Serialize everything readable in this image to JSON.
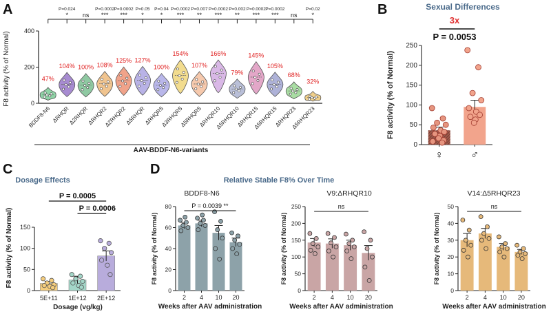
{
  "panel_labels": {
    "a": "A",
    "b": "B",
    "c": "C",
    "d": "D"
  },
  "chart_data": [
    {
      "id": "A",
      "type": "violin",
      "ylabel": "F8 activity (% of Normal)",
      "ylim": [
        0,
        400
      ],
      "yticks": [
        0,
        200,
        400
      ],
      "xlabel": "AAV-BDDF-N6-variants",
      "categories": [
        "BDDF8-N6",
        "ΔRHQR",
        "Δ2RHQR",
        "ΔRHQR2",
        "Δ2RHQR2",
        "Δ5RHQR",
        "ΔRHQR5",
        "Δ3RHQR5",
        "Δ5RHQR5",
        "ΔRHQR10",
        "Δ5RHQR10",
        "ΔRHQR15",
        "Δ5RHQR15",
        "ΔRHQR23",
        "Δ5RHQR23"
      ],
      "means_label": [
        "47%",
        "104%",
        "100%",
        "108%",
        "125%",
        "127%",
        "100%",
        "154%",
        "107%",
        "166%",
        "79%",
        "145%",
        "105%",
        "68%",
        "32%"
      ],
      "means": [
        47,
        104,
        100,
        108,
        125,
        127,
        100,
        154,
        107,
        166,
        79,
        145,
        105,
        68,
        32
      ],
      "colors": [
        "#8fd3a6",
        "#a78bd1",
        "#8fc9a2",
        "#f0c48f",
        "#f0a38a",
        "#b8b2e6",
        "#b9b7ea",
        "#f2dc8f",
        "#f6c9ad",
        "#d9b8e6",
        "#b9bfd8",
        "#e3a7c8",
        "#aeb2d8",
        "#a9dda3",
        "#f0cf8a"
      ],
      "pvalues": [
        "",
        "P=0.024",
        "",
        "P=0.0002",
        "P=0.0002",
        "P=0.05",
        "P=0.04",
        "P=0.0002",
        "P=0.007",
        "P=0.0002",
        "P=0.002",
        "P=0.0002",
        "P=0.0002",
        "",
        "P=0.02"
      ],
      "stars": [
        "",
        "*",
        "ns",
        "***",
        "***",
        "*",
        "*",
        "***",
        "**",
        "***",
        "**",
        "***",
        "***",
        "ns",
        "*"
      ]
    },
    {
      "id": "B",
      "type": "bar",
      "title": "Sexual Differences",
      "ylabel": "F8 activity (% of Normal)",
      "ylim": [
        0,
        250
      ],
      "yticks": [
        0,
        50,
        100,
        150,
        200,
        250
      ],
      "categories": [
        "♀",
        "♂"
      ],
      "values": [
        36,
        95
      ],
      "errors": [
        8,
        17
      ],
      "points": [
        [
          92,
          66,
          55,
          50,
          43,
          36,
          32,
          27,
          22,
          16,
          11,
          8,
          5
        ],
        [
          238,
          195,
          130,
          112,
          92,
          83,
          75,
          70,
          63,
          55
        ]
      ],
      "colors": [
        "#a0584a",
        "#f2a48c"
      ],
      "annotation_ratio": "3x",
      "annotation_p": "P = 0.0053"
    },
    {
      "id": "C",
      "type": "bar",
      "title": "Dosage Effects",
      "ylabel": "F8 activity (% of Normal)",
      "xlabel": "Dosage (vg/kg)",
      "ylim": [
        0,
        150
      ],
      "yticks": [
        0,
        50,
        100,
        150
      ],
      "categories": [
        "5E+11",
        "1E+12",
        "2E+12"
      ],
      "values": [
        17,
        25,
        82
      ],
      "errors": [
        5,
        9,
        12
      ],
      "points": [
        [
          28,
          24,
          18,
          14,
          12,
          10,
          7
        ],
        [
          38,
          34,
          28,
          22,
          18,
          12,
          8
        ],
        [
          118,
          112,
          100,
          90,
          72,
          60,
          38
        ]
      ],
      "colors": [
        "#f5cd7d",
        "#a3d6c8",
        "#b8acdc"
      ],
      "comparisons": [
        {
          "from": 0,
          "to": 2,
          "label": "P = 0.0005"
        },
        {
          "from": 1,
          "to": 2,
          "label": "P = 0.0006"
        }
      ]
    },
    {
      "id": "D",
      "title": "Relative Stable F8% Over Time",
      "xlabel": "Weeks after AAV administration",
      "ylabel": "F8 activity (% of Normal)",
      "subplots": [
        {
          "type": "bar",
          "subtitle": "BDDF8-N6",
          "categories": [
            "2",
            "4",
            "10",
            "20"
          ],
          "values": [
            62,
            64,
            55,
            46
          ],
          "errors": [
            3,
            3,
            7,
            4
          ],
          "ylim": [
            0,
            80
          ],
          "yticks": [
            0,
            20,
            40,
            60,
            80
          ],
          "color": "#8da2a9",
          "points": [
            [
              67,
              65,
              62,
              60,
              57,
              70
            ],
            [
              69,
              67,
              64,
              62,
              58,
              72
            ],
            [
              75,
              66,
              58,
              50,
              40,
              30
            ],
            [
              55,
              52,
              48,
              44,
              40,
              35
            ]
          ],
          "significance": "P = 0.0039 **"
        },
        {
          "type": "bar",
          "subtitle": "V9:ΔRHQR10",
          "categories": [
            "2",
            "4",
            "10",
            "20"
          ],
          "values": [
            143,
            140,
            135,
            112
          ],
          "errors": [
            12,
            14,
            15,
            22
          ],
          "ylim": [
            0,
            250
          ],
          "yticks": [
            0,
            50,
            100,
            150,
            200,
            250
          ],
          "color": "#c9a5a5",
          "points": [
            [
              170,
              155,
              140,
              130,
              120,
              110
            ],
            [
              170,
              158,
              142,
              130,
              118,
              100
            ],
            [
              168,
              150,
              140,
              130,
              118,
              95
            ],
            [
              175,
              150,
              125,
              100,
              70,
              30
            ]
          ],
          "significance": "ns"
        },
        {
          "type": "bar",
          "subtitle": "V14:Δ5RHQR23",
          "categories": [
            "2",
            "4",
            "10",
            "20"
          ],
          "values": [
            30,
            34,
            26,
            23
          ],
          "errors": [
            4,
            3,
            2,
            1.5
          ],
          "ylim": [
            0,
            50
          ],
          "yticks": [
            0,
            10,
            20,
            30,
            40,
            50
          ],
          "color": "#e6b97a",
          "points": [
            [
              42,
              36,
              30,
              27,
              24,
              20
            ],
            [
              44,
              38,
              34,
              31,
              30,
              25
            ],
            [
              32,
              28,
              26,
              25,
              23,
              20
            ],
            [
              27,
              25,
              23,
              22,
              21,
              19
            ]
          ],
          "significance": "ns"
        }
      ]
    }
  ]
}
